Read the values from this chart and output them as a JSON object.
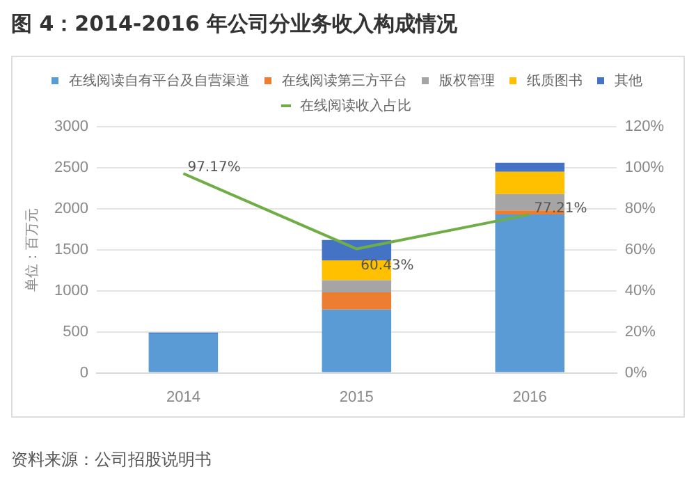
{
  "chart_data": {
    "type": "bar",
    "title": "图 4：2014-2016 年公司分业务收入构成情况",
    "ylabel": "单位：百万元",
    "categories": [
      "2014",
      "2015",
      "2016"
    ],
    "stacked": true,
    "series": [
      {
        "name": "在线阅读自有平台及自营渠道",
        "color": "#5b9bd5",
        "values": [
          480,
          770,
          1930
        ]
      },
      {
        "name": "在线阅读第三方平台",
        "color": "#ed7d31",
        "values": [
          0,
          210,
          50
        ]
      },
      {
        "name": "版权管理",
        "color": "#a5a5a5",
        "values": [
          0,
          150,
          200
        ]
      },
      {
        "name": "纸质图书",
        "color": "#ffc000",
        "values": [
          0,
          240,
          270
        ]
      },
      {
        "name": "其他",
        "color": "#4472c4",
        "values": [
          10,
          250,
          110
        ]
      },
      {
        "name": "在线阅读收入占比",
        "type": "line",
        "axis": "y2",
        "color": "#70ad47",
        "values": [
          97.17,
          60.43,
          77.21
        ],
        "value_labels": [
          "97.17%",
          "60.43%",
          "77.21%"
        ]
      }
    ],
    "ylim": [
      0,
      3000
    ],
    "yticks": [
      0,
      500,
      1000,
      1500,
      2000,
      2500,
      3000
    ],
    "y2lim": [
      0,
      120
    ],
    "y2ticks": [
      {
        "value": 0,
        "label": "0%"
      },
      {
        "value": 20,
        "label": "20%"
      },
      {
        "value": 40,
        "label": "40%"
      },
      {
        "value": 60,
        "label": "60%"
      },
      {
        "value": 80,
        "label": "80%"
      },
      {
        "value": 100,
        "label": "100%"
      },
      {
        "value": 120,
        "label": "120%"
      }
    ],
    "grid": "y",
    "legend": "top",
    "marker": "none",
    "annotations": [
      "资料来源：公司招股说明书"
    ]
  }
}
